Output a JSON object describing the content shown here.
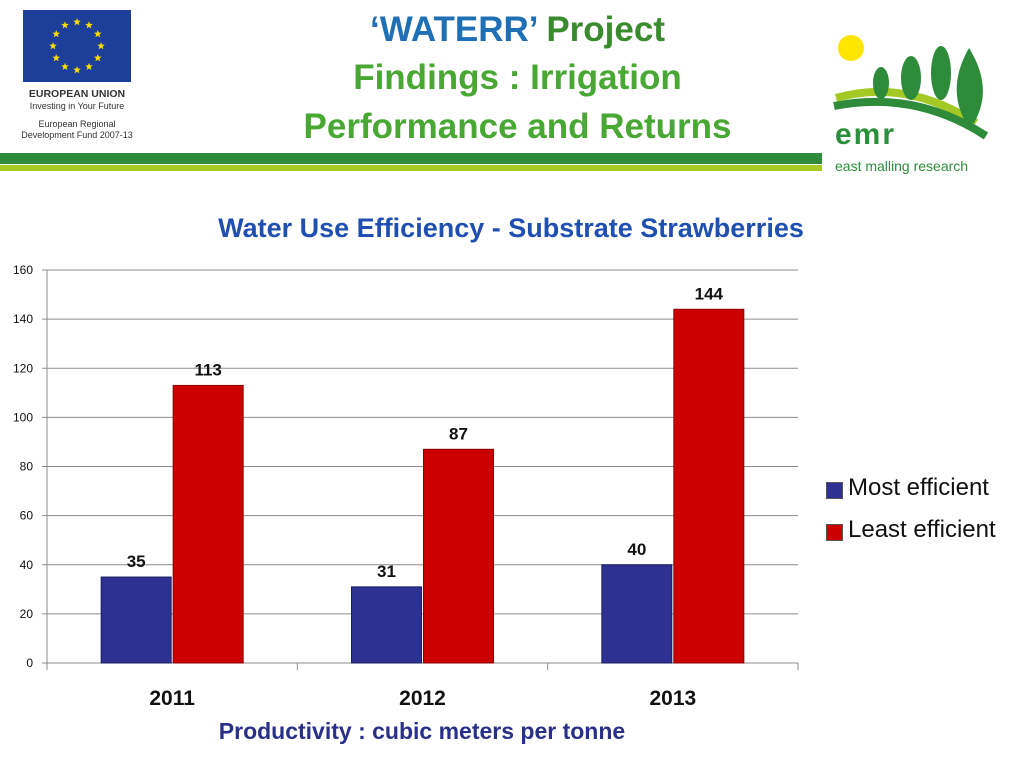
{
  "header": {
    "title_quote": "‘WATERR’",
    "title_project": "Project",
    "title_line2": "Findings : Irrigation",
    "title_line3": "Performance and Returns"
  },
  "eu_logo": {
    "line1": "EUROPEAN UNION",
    "line2": "Investing in Your Future",
    "line3": "European Regional",
    "line4": "Development Fund 2007-13"
  },
  "emr_logo": {
    "short": "emr",
    "full": "east malling research"
  },
  "colors": {
    "most_efficient": "#2e3192",
    "least_efficient": "#cc0000"
  },
  "chart_data": {
    "type": "bar",
    "title": "Water  Use Efficiency - Substrate Strawberries",
    "xlabel": "Productivity :  cubic meters per tonne",
    "ylabel": "",
    "categories": [
      "2011",
      "2012",
      "2013"
    ],
    "series": [
      {
        "name": "Most efficient",
        "values": [
          35,
          31,
          40
        ]
      },
      {
        "name": "Least efficient",
        "values": [
          113,
          87,
          144
        ]
      }
    ],
    "ylim": [
      0,
      160
    ],
    "yticks": [
      0,
      20,
      40,
      60,
      80,
      100,
      120,
      140,
      160
    ],
    "grid": true,
    "legend": "right"
  }
}
